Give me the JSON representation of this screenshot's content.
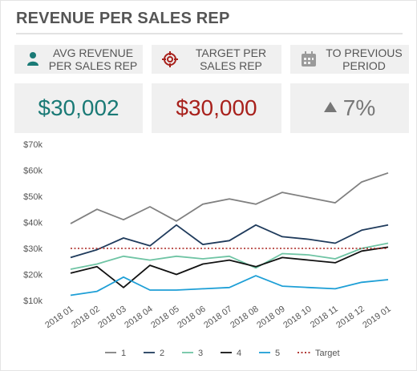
{
  "title": "REVENUE PER SALES REP",
  "kpis": [
    {
      "label_line1": "AVG REVENUE",
      "label_line2": "PER SALES REP",
      "value": "$30,002",
      "icon": "person-icon"
    },
    {
      "label_line1": "TARGET PER",
      "label_line2": "SALES REP",
      "value": "$30,000",
      "icon": "target-icon"
    },
    {
      "label_line1": "TO PREVIOUS",
      "label_line2": "PERIOD",
      "value": "7%",
      "icon": "calendar-icon",
      "trend": "up"
    }
  ],
  "colors": {
    "accent_teal": "#1a7a76",
    "accent_red": "#a8211c",
    "neutral": "#777777"
  },
  "chart_data": {
    "type": "line",
    "title": "",
    "xlabel": "",
    "ylabel": "",
    "categories": [
      "2018 01",
      "2018 02",
      "2018 03",
      "2018 04",
      "2018 05",
      "2018 06",
      "2018 07",
      "2018 08",
      "2018 09",
      "2018 10",
      "2018 11",
      "2018 12",
      "2019 01"
    ],
    "ylim": [
      10000,
      70000
    ],
    "yticks": [
      10000,
      20000,
      30000,
      40000,
      50000,
      60000,
      70000
    ],
    "ytick_labels": [
      "$10k",
      "$20k",
      "$30k",
      "$40k",
      "$50k",
      "$60k",
      "$70k"
    ],
    "grid": false,
    "legend_position": "bottom",
    "series": [
      {
        "name": "1",
        "color": "#808080",
        "values": [
          39500,
          45000,
          41000,
          46000,
          40500,
          47000,
          49000,
          47000,
          51500,
          49500,
          47500,
          55500,
          59000
        ]
      },
      {
        "name": "2",
        "color": "#1f3b5c",
        "values": [
          26500,
          29500,
          34000,
          31000,
          39000,
          31500,
          33000,
          39000,
          34500,
          33500,
          32000,
          37000,
          39000
        ]
      },
      {
        "name": "3",
        "color": "#6fc4a4",
        "values": [
          22000,
          24000,
          27000,
          25500,
          27000,
          26000,
          27000,
          22500,
          28000,
          27500,
          26000,
          30000,
          32000
        ]
      },
      {
        "name": "4",
        "color": "#111111",
        "values": [
          20500,
          23000,
          15000,
          23500,
          20000,
          24000,
          25500,
          23000,
          26500,
          25500,
          24500,
          29000,
          30500
        ]
      },
      {
        "name": "5",
        "color": "#1e9fd6",
        "values": [
          12000,
          13500,
          19000,
          14000,
          14000,
          14500,
          15000,
          19500,
          15500,
          15000,
          14500,
          17000,
          18000
        ]
      },
      {
        "name": "Target",
        "color": "#a8211c",
        "dashed": true,
        "values": [
          30000,
          30000,
          30000,
          30000,
          30000,
          30000,
          30000,
          30000,
          30000,
          30000,
          30000,
          30000,
          30000
        ]
      }
    ]
  }
}
